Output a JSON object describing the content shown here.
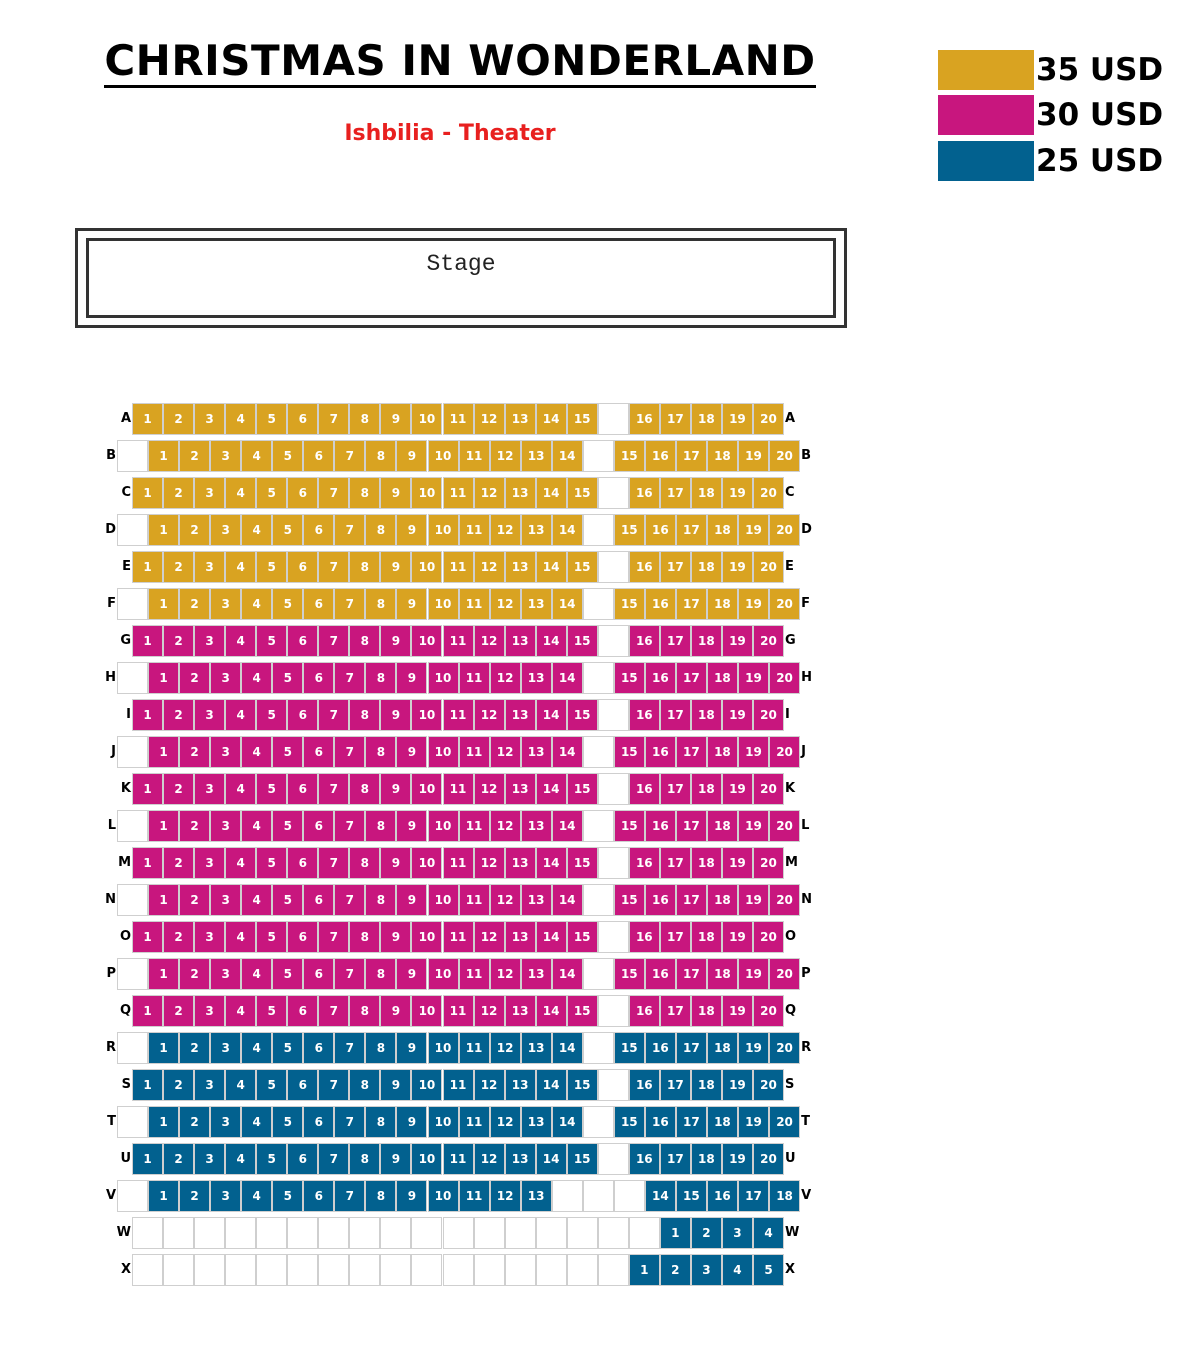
{
  "header": {
    "title": "CHRISTMAS IN WONDERLAND",
    "subtitle": "Ishbilia - Theater"
  },
  "legend": [
    {
      "label": "35 USD",
      "color": "#D9A321"
    },
    {
      "label": "30 USD",
      "color": "#C8167E"
    },
    {
      "label": "25 USD",
      "color": "#02618F"
    }
  ],
  "stage": {
    "label": "Stage"
  },
  "seating": {
    "tier_colors": {
      "35": "#D9A321",
      "30": "#C8167E",
      "25": "#02618F"
    },
    "rows": [
      {
        "label": "A",
        "tier": "35",
        "cells": [
          1,
          2,
          3,
          4,
          5,
          6,
          7,
          8,
          9,
          10,
          11,
          12,
          13,
          14,
          15,
          0,
          16,
          17,
          18,
          19,
          20
        ]
      },
      {
        "label": "B",
        "tier": "35",
        "cells": [
          0,
          1,
          2,
          3,
          4,
          5,
          6,
          7,
          8,
          9,
          10,
          11,
          12,
          13,
          14,
          0,
          15,
          16,
          17,
          18,
          19,
          20
        ]
      },
      {
        "label": "C",
        "tier": "35",
        "cells": [
          1,
          2,
          3,
          4,
          5,
          6,
          7,
          8,
          9,
          10,
          11,
          12,
          13,
          14,
          15,
          0,
          16,
          17,
          18,
          19,
          20
        ]
      },
      {
        "label": "D",
        "tier": "35",
        "cells": [
          0,
          1,
          2,
          3,
          4,
          5,
          6,
          7,
          8,
          9,
          10,
          11,
          12,
          13,
          14,
          0,
          15,
          16,
          17,
          18,
          19,
          20
        ]
      },
      {
        "label": "E",
        "tier": "35",
        "cells": [
          1,
          2,
          3,
          4,
          5,
          6,
          7,
          8,
          9,
          10,
          11,
          12,
          13,
          14,
          15,
          0,
          16,
          17,
          18,
          19,
          20
        ]
      },
      {
        "label": "F",
        "tier": "35",
        "cells": [
          0,
          1,
          2,
          3,
          4,
          5,
          6,
          7,
          8,
          9,
          10,
          11,
          12,
          13,
          14,
          0,
          15,
          16,
          17,
          18,
          19,
          20
        ]
      },
      {
        "label": "G",
        "tier": "30",
        "cells": [
          1,
          2,
          3,
          4,
          5,
          6,
          7,
          8,
          9,
          10,
          11,
          12,
          13,
          14,
          15,
          0,
          16,
          17,
          18,
          19,
          20
        ]
      },
      {
        "label": "H",
        "tier": "30",
        "cells": [
          0,
          1,
          2,
          3,
          4,
          5,
          6,
          7,
          8,
          9,
          10,
          11,
          12,
          13,
          14,
          0,
          15,
          16,
          17,
          18,
          19,
          20
        ]
      },
      {
        "label": "I",
        "tier": "30",
        "cells": [
          1,
          2,
          3,
          4,
          5,
          6,
          7,
          8,
          9,
          10,
          11,
          12,
          13,
          14,
          15,
          0,
          16,
          17,
          18,
          19,
          20
        ]
      },
      {
        "label": "J",
        "tier": "30",
        "cells": [
          0,
          1,
          2,
          3,
          4,
          5,
          6,
          7,
          8,
          9,
          10,
          11,
          12,
          13,
          14,
          0,
          15,
          16,
          17,
          18,
          19,
          20
        ]
      },
      {
        "label": "K",
        "tier": "30",
        "cells": [
          1,
          2,
          3,
          4,
          5,
          6,
          7,
          8,
          9,
          10,
          11,
          12,
          13,
          14,
          15,
          0,
          16,
          17,
          18,
          19,
          20
        ]
      },
      {
        "label": "L",
        "tier": "30",
        "cells": [
          0,
          1,
          2,
          3,
          4,
          5,
          6,
          7,
          8,
          9,
          10,
          11,
          12,
          13,
          14,
          0,
          15,
          16,
          17,
          18,
          19,
          20
        ]
      },
      {
        "label": "M",
        "tier": "30",
        "cells": [
          1,
          2,
          3,
          4,
          5,
          6,
          7,
          8,
          9,
          10,
          11,
          12,
          13,
          14,
          15,
          0,
          16,
          17,
          18,
          19,
          20
        ]
      },
      {
        "label": "N",
        "tier": "30",
        "cells": [
          0,
          1,
          2,
          3,
          4,
          5,
          6,
          7,
          8,
          9,
          10,
          11,
          12,
          13,
          14,
          0,
          15,
          16,
          17,
          18,
          19,
          20
        ]
      },
      {
        "label": "O",
        "tier": "30",
        "cells": [
          1,
          2,
          3,
          4,
          5,
          6,
          7,
          8,
          9,
          10,
          11,
          12,
          13,
          14,
          15,
          0,
          16,
          17,
          18,
          19,
          20
        ]
      },
      {
        "label": "P",
        "tier": "30",
        "cells": [
          0,
          1,
          2,
          3,
          4,
          5,
          6,
          7,
          8,
          9,
          10,
          11,
          12,
          13,
          14,
          0,
          15,
          16,
          17,
          18,
          19,
          20
        ]
      },
      {
        "label": "Q",
        "tier": "30",
        "cells": [
          1,
          2,
          3,
          4,
          5,
          6,
          7,
          8,
          9,
          10,
          11,
          12,
          13,
          14,
          15,
          0,
          16,
          17,
          18,
          19,
          20
        ]
      },
      {
        "label": "R",
        "tier": "25",
        "cells": [
          0,
          1,
          2,
          3,
          4,
          5,
          6,
          7,
          8,
          9,
          10,
          11,
          12,
          13,
          14,
          0,
          15,
          16,
          17,
          18,
          19,
          20
        ]
      },
      {
        "label": "S",
        "tier": "25",
        "cells": [
          1,
          2,
          3,
          4,
          5,
          6,
          7,
          8,
          9,
          10,
          11,
          12,
          13,
          14,
          15,
          0,
          16,
          17,
          18,
          19,
          20
        ]
      },
      {
        "label": "T",
        "tier": "25",
        "cells": [
          0,
          1,
          2,
          3,
          4,
          5,
          6,
          7,
          8,
          9,
          10,
          11,
          12,
          13,
          14,
          0,
          15,
          16,
          17,
          18,
          19,
          20
        ]
      },
      {
        "label": "U",
        "tier": "25",
        "cells": [
          1,
          2,
          3,
          4,
          5,
          6,
          7,
          8,
          9,
          10,
          11,
          12,
          13,
          14,
          15,
          0,
          16,
          17,
          18,
          19,
          20
        ]
      },
      {
        "label": "V",
        "tier": "25",
        "cells": [
          0,
          1,
          2,
          3,
          4,
          5,
          6,
          7,
          8,
          9,
          10,
          11,
          12,
          13,
          0,
          0,
          0,
          14,
          15,
          16,
          17,
          18
        ]
      },
      {
        "label": "W",
        "tier": "25",
        "cells": [
          0,
          0,
          0,
          0,
          0,
          0,
          0,
          0,
          0,
          0,
          0,
          0,
          0,
          0,
          0,
          0,
          0,
          1,
          2,
          3,
          4
        ]
      },
      {
        "label": "X",
        "tier": "25",
        "cells": [
          0,
          0,
          0,
          0,
          0,
          0,
          0,
          0,
          0,
          0,
          0,
          0,
          0,
          0,
          0,
          0,
          1,
          2,
          3,
          4,
          5
        ]
      }
    ]
  }
}
